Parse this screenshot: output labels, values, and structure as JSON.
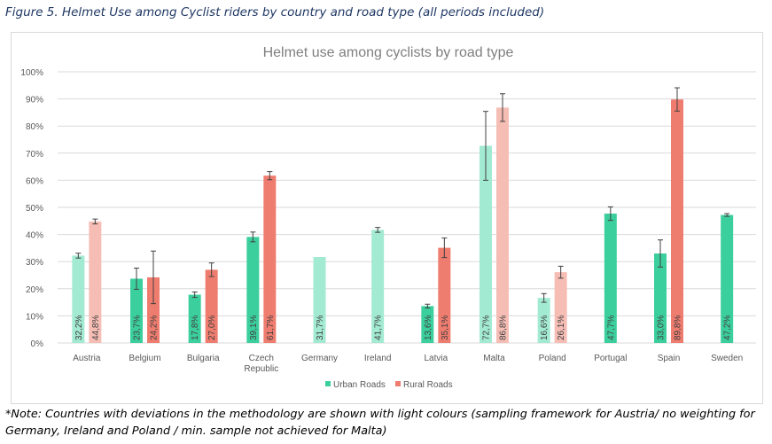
{
  "figure_title": "Figure 5. Helmet Use among Cyclist riders by country and road type (all periods included)",
  "note": "*Note: Countries with deviations in the methodology are shown with light colours (sampling framework for Austria/ no weighting for Germany, Ireland and Poland / min. sample not achieved for Malta)",
  "colors": {
    "urban": "#3ccf9e",
    "urban_light": "#a3ead3",
    "rural": "#ef7d6f",
    "rural_light": "#f6bdb5",
    "grid": "#d9d9d9",
    "axis_text": "#595959",
    "title_text": "#7f7f7f",
    "error_bar": "#404040"
  },
  "chart_data": {
    "type": "bar",
    "title": "Helmet use among cyclists by road type",
    "xlabel": "",
    "ylabel": "",
    "ylim": [
      0,
      100
    ],
    "yticks": [
      0,
      10,
      20,
      30,
      40,
      50,
      60,
      70,
      80,
      90,
      100
    ],
    "ytick_labels": [
      "0%",
      "10%",
      "20%",
      "30%",
      "40%",
      "50%",
      "60%",
      "70%",
      "80%",
      "90%",
      "100%"
    ],
    "grid": true,
    "legend_position": "bottom",
    "categories": [
      "Austria",
      "Belgium",
      "Bulgaria",
      "Czech Republic",
      "Germany",
      "Ireland",
      "Latvia",
      "Malta",
      "Poland",
      "Portugal",
      "Spain",
      "Sweden"
    ],
    "category_labels": [
      [
        "Austria"
      ],
      [
        "Belgium"
      ],
      [
        "Bulgaria"
      ],
      [
        "Czech",
        "Republic"
      ],
      [
        "Germany"
      ],
      [
        "Ireland"
      ],
      [
        "Latvia"
      ],
      [
        "Malta"
      ],
      [
        "Poland"
      ],
      [
        "Portugal"
      ],
      [
        "Spain"
      ],
      [
        "Sweden"
      ]
    ],
    "series": [
      {
        "name": "Urban Roads",
        "values": [
          32.2,
          23.7,
          17.8,
          39.1,
          31.7,
          41.7,
          13.6,
          72.7,
          16.6,
          47.7,
          33.0,
          47.2
        ],
        "labels": [
          "32,2%",
          "23,7%",
          "17,8%",
          "39,1%",
          "31,7%",
          "41,7%",
          "13,6%",
          "72,7%",
          "16,6%",
          "47,7%",
          "33,0%",
          "47,2%"
        ],
        "error_low": [
          31.3,
          19.8,
          16.8,
          37.3,
          null,
          40.8,
          12.9,
          60.0,
          15.0,
          45.2,
          28.0,
          46.7
        ],
        "error_high": [
          33.1,
          27.6,
          18.8,
          40.9,
          null,
          42.6,
          14.3,
          85.4,
          18.2,
          50.2,
          38.0,
          47.7
        ],
        "light": [
          true,
          false,
          false,
          false,
          true,
          true,
          false,
          true,
          true,
          false,
          false,
          false
        ]
      },
      {
        "name": "Rural Roads",
        "values": [
          44.8,
          24.2,
          27.0,
          61.7,
          null,
          null,
          35.1,
          86.8,
          26.1,
          null,
          89.8,
          null
        ],
        "labels": [
          "44,8%",
          "24,2%",
          "27,0%",
          "61,7%",
          "",
          "",
          "35,1%",
          "86,8%",
          "26,1%",
          "",
          "89,8%",
          ""
        ],
        "error_low": [
          43.9,
          14.5,
          24.5,
          60.2,
          null,
          null,
          31.5,
          81.7,
          23.9,
          null,
          85.5,
          null
        ],
        "error_high": [
          45.7,
          33.9,
          29.5,
          63.2,
          null,
          null,
          38.7,
          91.9,
          28.3,
          null,
          94.1,
          null
        ],
        "light": [
          true,
          false,
          false,
          false,
          false,
          false,
          false,
          true,
          true,
          false,
          false,
          false
        ]
      }
    ]
  }
}
